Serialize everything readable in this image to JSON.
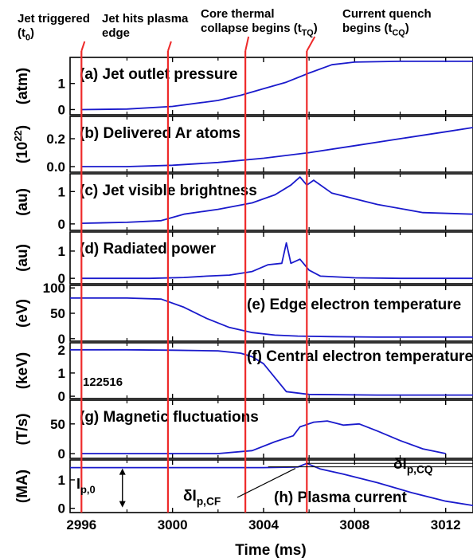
{
  "events": [
    {
      "t": 2996.0,
      "label1": "Jet triggered",
      "label2": "(t",
      "sub": "0",
      "close": ")"
    },
    {
      "t": 2999.8,
      "label1": "Jet hits plasma",
      "label2": "edge",
      "sub": "",
      "close": ""
    },
    {
      "t": 3003.2,
      "label1": "Core thermal",
      "label2": "collapse begins (t",
      "sub": "TQ",
      "close": ")"
    },
    {
      "t": 3005.9,
      "label1": "Current quench",
      "label2": "begins (t",
      "sub": "CQ",
      "close": ")"
    }
  ],
  "colors": {
    "signal": "#1a1acc",
    "event_line": "#ee2a2a",
    "axis": "#000000"
  },
  "shot_label": "122516",
  "chart_data": {
    "type": "line",
    "xlabel": "Time (ms)",
    "xlim": [
      2995.5,
      3013.2
    ],
    "xticks": [
      2996,
      3000,
      3004,
      3008,
      3012
    ],
    "xtick_labels": [
      "2996",
      "3000",
      "3004",
      "3008",
      "3012"
    ],
    "panels": [
      {
        "key": "a",
        "title": "(a) Jet outlet pressure",
        "ylabel": "(atm)",
        "ylim": [
          -0.2,
          2.0
        ],
        "yticks": [
          0,
          1
        ],
        "ytick_labels": [
          "0",
          "1"
        ],
        "x": [
          2996,
          2998,
          3000,
          3002,
          3003,
          3004,
          3005,
          3006,
          3007,
          3008,
          3010,
          3012,
          3013.2
        ],
        "y": [
          0.0,
          0.02,
          0.12,
          0.35,
          0.55,
          0.8,
          1.05,
          1.4,
          1.72,
          1.82,
          1.85,
          1.85,
          1.85
        ]
      },
      {
        "key": "b",
        "title": "(b) Delivered Ar atoms",
        "ylabel": "(10",
        "ylabel_sup": "22",
        "ylabel_close": ")",
        "ylim": [
          -0.04,
          0.36
        ],
        "yticks": [
          0.0,
          0.2
        ],
        "ytick_labels": [
          "0.0",
          "0.2"
        ],
        "x": [
          2996,
          2998,
          3000,
          3002,
          3004,
          3006,
          3008,
          3010,
          3012,
          3013.2
        ],
        "y": [
          0.0,
          0.0,
          0.01,
          0.03,
          0.06,
          0.1,
          0.15,
          0.2,
          0.25,
          0.28
        ]
      },
      {
        "key": "c",
        "title": "(c) Jet visible brightness",
        "ylabel": "(au)",
        "ylim": [
          -0.2,
          1.55
        ],
        "yticks": [
          0,
          1
        ],
        "ytick_labels": [
          "0",
          "1"
        ],
        "x": [
          2996,
          2998,
          2999.5,
          3000.5,
          3002,
          3003.5,
          3004.5,
          3005.2,
          3005.6,
          3005.9,
          3006.2,
          3007,
          3009,
          3011,
          3013.2
        ],
        "y": [
          0.02,
          0.05,
          0.1,
          0.3,
          0.45,
          0.65,
          0.9,
          1.2,
          1.45,
          1.2,
          1.35,
          0.95,
          0.6,
          0.35,
          0.3
        ]
      },
      {
        "key": "d",
        "title": "(d) Radiated power",
        "ylabel": "(au)",
        "ylim": [
          -0.2,
          1.7
        ],
        "yticks": [
          0,
          1
        ],
        "ytick_labels": [
          "0",
          "1"
        ],
        "x": [
          2996,
          2999,
          3000.5,
          3001.5,
          3002.5,
          3003.5,
          3004.2,
          3004.8,
          3005.0,
          3005.2,
          3005.6,
          3006.0,
          3006.5,
          3008,
          3010,
          3013.2
        ],
        "y": [
          0.0,
          0.0,
          0.03,
          0.08,
          0.12,
          0.25,
          0.5,
          0.55,
          1.3,
          0.55,
          0.7,
          0.3,
          0.08,
          0.02,
          0.0,
          0.0
        ]
      },
      {
        "key": "e",
        "title": "(e) Edge electron temperature",
        "ylabel": "(eV)",
        "ylim": [
          -5,
          105
        ],
        "yticks": [
          0,
          50,
          100
        ],
        "ytick_labels": [
          "0",
          "50",
          "100"
        ],
        "x": [
          2995.5,
          2998,
          2999.5,
          3000.5,
          3001.5,
          3002.5,
          3003.5,
          3004.5,
          3005.5,
          3007,
          3009,
          3011,
          3013.2
        ],
        "y": [
          80,
          80,
          78,
          62,
          40,
          22,
          12,
          7,
          5,
          4,
          3,
          3,
          3
        ]
      },
      {
        "key": "f",
        "title": "(f) Central electron temperature",
        "ylabel": "(keV)",
        "ylim": [
          -0.1,
          2.3
        ],
        "yticks": [
          0,
          1,
          2
        ],
        "ytick_labels": [
          "0",
          "1",
          "2"
        ],
        "x": [
          2995.5,
          2998,
          3000,
          3002,
          3003,
          3003.5,
          3004,
          3004.5,
          3005,
          3006,
          3009,
          3013.2
        ],
        "y": [
          2.0,
          2.0,
          1.98,
          1.95,
          1.85,
          1.7,
          1.4,
          0.8,
          0.2,
          0.08,
          0.05,
          0.05
        ]
      },
      {
        "key": "g",
        "title": "(g) Magnetic fluctuations",
        "ylabel": "(T/s)",
        "ylim": [
          -8,
          90
        ],
        "yticks": [
          0,
          50
        ],
        "ytick_labels": [
          "0",
          "50"
        ],
        "x": [
          2996,
          3002,
          3003.5,
          3004.5,
          3005.3,
          3005.6,
          3006.2,
          3006.8,
          3007.5,
          3008.2,
          3009,
          3010,
          3011,
          3012
        ],
        "y": [
          0,
          0,
          5,
          20,
          30,
          45,
          53,
          55,
          48,
          50,
          38,
          22,
          8,
          0
        ]
      },
      {
        "key": "h",
        "title": "(h) Plasma current",
        "ylabel": "(MA)",
        "ylim": [
          -0.15,
          1.7
        ],
        "yticks": [
          0,
          1
        ],
        "ytick_labels": [
          "0",
          "1"
        ],
        "x": [
          2995.5,
          3000,
          3004,
          3005.5,
          3005.9,
          3006.5,
          3007.5,
          3009,
          3010.5,
          3012,
          3013.2
        ],
        "y": [
          1.43,
          1.43,
          1.43,
          1.45,
          1.58,
          1.38,
          1.2,
          0.9,
          0.55,
          0.25,
          0.1
        ]
      }
    ],
    "annotations": {
      "ip0_main": "I",
      "ip0_sub": "p,0",
      "dip_cf_main": "δI",
      "dip_cf_sub": "p,CF",
      "dip_cq_main": "δI",
      "dip_cq_sub": "p,CQ"
    }
  }
}
